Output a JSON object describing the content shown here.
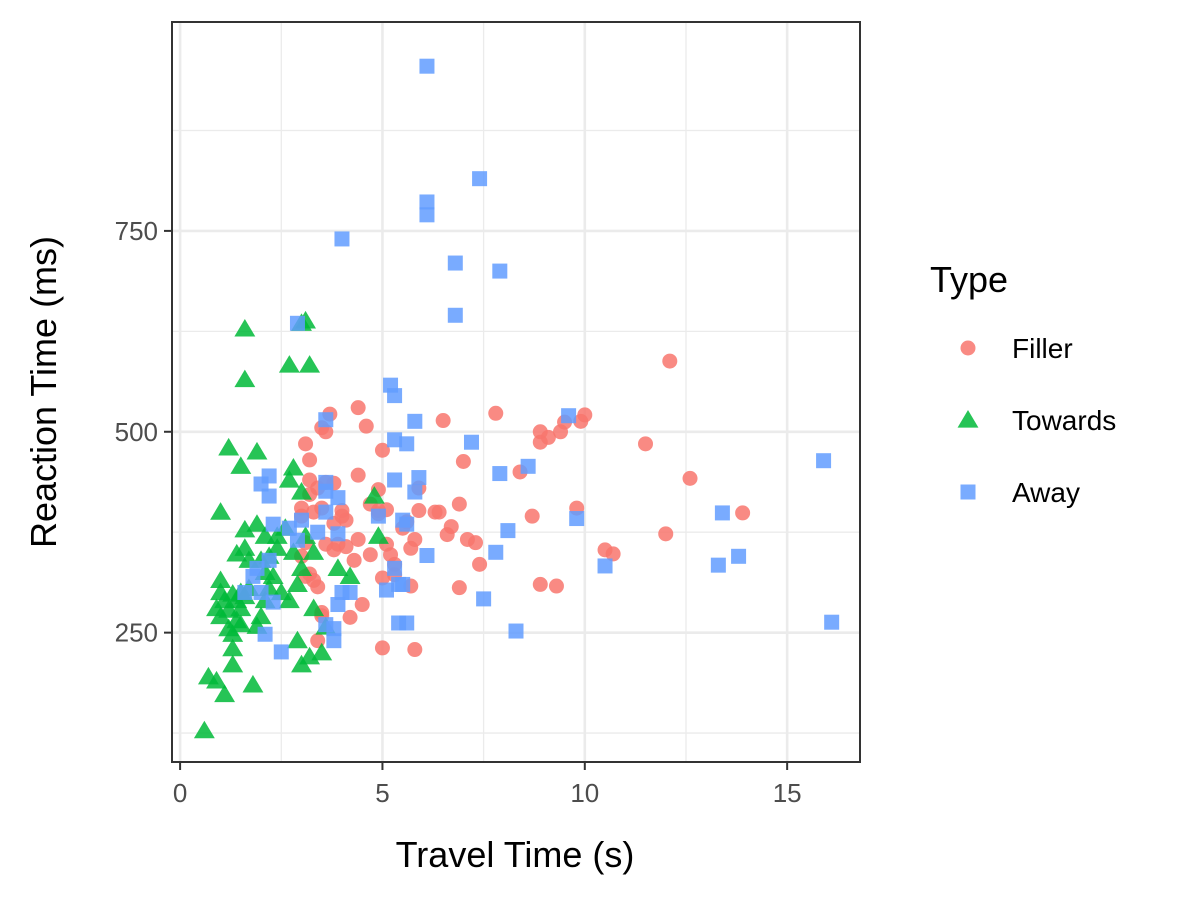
{
  "chart_data": {
    "type": "scatter",
    "xlabel": "Travel Time (s)",
    "ylabel": "Reaction Time (ms)",
    "xlim": [
      -0.2,
      16.8
    ],
    "ylim": [
      89,
      1010
    ],
    "x_ticks": [
      0,
      5,
      10,
      15
    ],
    "y_ticks": [
      250,
      500,
      750
    ],
    "grid": true,
    "legend": {
      "title": "Type",
      "position": "right"
    },
    "series": [
      {
        "name": "Filler",
        "marker": "circle",
        "color": "#F8766D",
        "points": [
          [
            3.1,
            485
          ],
          [
            3.2,
            465
          ],
          [
            3.5,
            505
          ],
          [
            3.6,
            500
          ],
          [
            3.7,
            522
          ],
          [
            4.4,
            530
          ],
          [
            4.6,
            507
          ],
          [
            5.0,
            477
          ],
          [
            4.9,
            428
          ],
          [
            4.4,
            446
          ],
          [
            3.2,
            440
          ],
          [
            3.4,
            430
          ],
          [
            3.6,
            437
          ],
          [
            3.8,
            436
          ],
          [
            3.2,
            422
          ],
          [
            3.0,
            405
          ],
          [
            3.5,
            405
          ],
          [
            4.0,
            402
          ],
          [
            4.7,
            410
          ],
          [
            4.9,
            398
          ],
          [
            5.1,
            403
          ],
          [
            5.6,
            388
          ],
          [
            5.9,
            402
          ],
          [
            5.9,
            430
          ],
          [
            6.3,
            400
          ],
          [
            6.4,
            400
          ],
          [
            6.6,
            372
          ],
          [
            6.7,
            382
          ],
          [
            6.9,
            410
          ],
          [
            7.1,
            366
          ],
          [
            7.3,
            362
          ],
          [
            7.0,
            463
          ],
          [
            6.5,
            514
          ],
          [
            7.8,
            523
          ],
          [
            8.7,
            395
          ],
          [
            8.9,
            500
          ],
          [
            8.9,
            487
          ],
          [
            9.1,
            493
          ],
          [
            9.4,
            500
          ],
          [
            9.5,
            512
          ],
          [
            9.8,
            405
          ],
          [
            9.9,
            513
          ],
          [
            10.0,
            521
          ],
          [
            10.5,
            353
          ],
          [
            10.7,
            348
          ],
          [
            11.5,
            485
          ],
          [
            12.0,
            373
          ],
          [
            12.1,
            588
          ],
          [
            12.6,
            442
          ],
          [
            13.9,
            399
          ],
          [
            8.4,
            450
          ],
          [
            8.9,
            310
          ],
          [
            9.3,
            308
          ],
          [
            7.4,
            335
          ],
          [
            6.9,
            306
          ],
          [
            5.7,
            308
          ],
          [
            5.0,
            318
          ],
          [
            5.3,
            322
          ],
          [
            5.3,
            335
          ],
          [
            5.2,
            347
          ],
          [
            4.7,
            347
          ],
          [
            4.3,
            340
          ],
          [
            4.4,
            366
          ],
          [
            4.1,
            357
          ],
          [
            4.0,
            395
          ],
          [
            3.8,
            386
          ],
          [
            3.8,
            353
          ],
          [
            3.9,
            360
          ],
          [
            3.6,
            360
          ],
          [
            3.1,
            362
          ],
          [
            3.0,
            345
          ],
          [
            3.2,
            323
          ],
          [
            3.1,
            320
          ],
          [
            3.3,
            315
          ],
          [
            3.4,
            307
          ],
          [
            3.5,
            271
          ],
          [
            4.2,
            269
          ],
          [
            4.5,
            285
          ],
          [
            3.5,
            275
          ],
          [
            3.4,
            240
          ],
          [
            5.0,
            231
          ],
          [
            5.8,
            229
          ],
          [
            5.5,
            380
          ],
          [
            5.7,
            355
          ],
          [
            5.8,
            366
          ],
          [
            5.1,
            360
          ],
          [
            4.1,
            390
          ],
          [
            3.0,
            395
          ],
          [
            3.3,
            400
          ],
          [
            4.9,
            402
          ]
        ]
      },
      {
        "name": "Towards",
        "marker": "triangle",
        "color": "#00BA38",
        "points": [
          [
            0.6,
            128
          ],
          [
            0.7,
            195
          ],
          [
            0.9,
            190
          ],
          [
            1.1,
            173
          ],
          [
            1.3,
            210
          ],
          [
            1.3,
            230
          ],
          [
            1.3,
            248
          ],
          [
            1.0,
            270
          ],
          [
            1.1,
            290
          ],
          [
            1.2,
            278
          ],
          [
            1.4,
            290
          ],
          [
            1.5,
            300
          ],
          [
            1.6,
            295
          ],
          [
            1.5,
            260
          ],
          [
            1.8,
            185
          ],
          [
            1.9,
            258
          ],
          [
            2.0,
            270
          ],
          [
            2.1,
            290
          ],
          [
            2.2,
            305
          ],
          [
            2.3,
            320
          ],
          [
            2.0,
            340
          ],
          [
            2.2,
            345
          ],
          [
            2.4,
            370
          ],
          [
            2.6,
            380
          ],
          [
            2.8,
            350
          ],
          [
            2.7,
            290
          ],
          [
            2.9,
            310
          ],
          [
            3.0,
            330
          ],
          [
            2.9,
            240
          ],
          [
            3.0,
            210
          ],
          [
            3.2,
            220
          ],
          [
            3.5,
            225
          ],
          [
            3.3,
            280
          ],
          [
            3.6,
            257
          ],
          [
            3.3,
            350
          ],
          [
            3.1,
            370
          ],
          [
            2.7,
            440
          ],
          [
            2.8,
            455
          ],
          [
            3.0,
            425
          ],
          [
            1.0,
            400
          ],
          [
            1.2,
            480
          ],
          [
            1.5,
            457
          ],
          [
            1.9,
            475
          ],
          [
            1.6,
            378
          ],
          [
            1.6,
            355
          ],
          [
            1.7,
            340
          ],
          [
            1.4,
            348
          ],
          [
            1.9,
            385
          ],
          [
            1.0,
            315
          ],
          [
            1.3,
            298
          ],
          [
            1.6,
            565
          ],
          [
            1.6,
            628
          ],
          [
            2.7,
            583
          ],
          [
            3.2,
            583
          ],
          [
            3.0,
            635
          ],
          [
            3.1,
            638
          ],
          [
            3.9,
            330
          ],
          [
            4.2,
            320
          ],
          [
            4.9,
            370
          ],
          [
            4.8,
            420
          ],
          [
            1.2,
            255
          ],
          [
            1.4,
            265
          ],
          [
            2.1,
            325
          ],
          [
            1.7,
            305
          ],
          [
            2.5,
            300
          ],
          [
            0.9,
            280
          ],
          [
            1.0,
            300
          ],
          [
            1.5,
            280
          ],
          [
            2.1,
            370
          ],
          [
            2.4,
            355
          ]
        ]
      },
      {
        "name": "Away",
        "marker": "square",
        "color": "#619CFF",
        "points": [
          [
            6.1,
            955
          ],
          [
            7.4,
            815
          ],
          [
            6.1,
            786
          ],
          [
            6.1,
            770
          ],
          [
            4.0,
            740
          ],
          [
            6.8,
            710
          ],
          [
            7.9,
            700
          ],
          [
            6.8,
            645
          ],
          [
            5.2,
            558
          ],
          [
            5.3,
            545
          ],
          [
            5.8,
            513
          ],
          [
            3.6,
            515
          ],
          [
            5.3,
            490
          ],
          [
            5.6,
            485
          ],
          [
            7.2,
            487
          ],
          [
            8.6,
            457
          ],
          [
            7.9,
            448
          ],
          [
            9.6,
            520
          ],
          [
            9.8,
            392
          ],
          [
            8.1,
            377
          ],
          [
            7.8,
            350
          ],
          [
            7.5,
            292
          ],
          [
            8.3,
            252
          ],
          [
            10.5,
            333
          ],
          [
            13.4,
            399
          ],
          [
            13.3,
            334
          ],
          [
            13.8,
            345
          ],
          [
            15.9,
            464
          ],
          [
            16.1,
            263
          ],
          [
            5.9,
            443
          ],
          [
            5.3,
            440
          ],
          [
            5.8,
            425
          ],
          [
            5.5,
            390
          ],
          [
            5.6,
            385
          ],
          [
            4.9,
            395
          ],
          [
            6.1,
            346
          ],
          [
            5.3,
            330
          ],
          [
            5.4,
            310
          ],
          [
            5.5,
            310
          ],
          [
            5.1,
            303
          ],
          [
            5.4,
            262
          ],
          [
            5.6,
            262
          ],
          [
            3.6,
            426
          ],
          [
            3.6,
            437
          ],
          [
            3.9,
            418
          ],
          [
            3.6,
            400
          ],
          [
            3.9,
            373
          ],
          [
            4.0,
            300
          ],
          [
            3.9,
            285
          ],
          [
            3.6,
            260
          ],
          [
            3.8,
            255
          ],
          [
            3.8,
            240
          ],
          [
            2.2,
            445
          ],
          [
            2.0,
            435
          ],
          [
            2.2,
            420
          ],
          [
            2.3,
            385
          ],
          [
            2.7,
            380
          ],
          [
            2.9,
            365
          ],
          [
            2.2,
            340
          ],
          [
            1.9,
            330
          ],
          [
            2.0,
            300
          ],
          [
            2.3,
            288
          ],
          [
            2.1,
            248
          ],
          [
            2.5,
            226
          ],
          [
            1.6,
            300
          ],
          [
            1.8,
            320
          ],
          [
            2.9,
            635
          ],
          [
            3.0,
            390
          ],
          [
            4.2,
            300
          ],
          [
            3.4,
            375
          ]
        ]
      }
    ]
  }
}
